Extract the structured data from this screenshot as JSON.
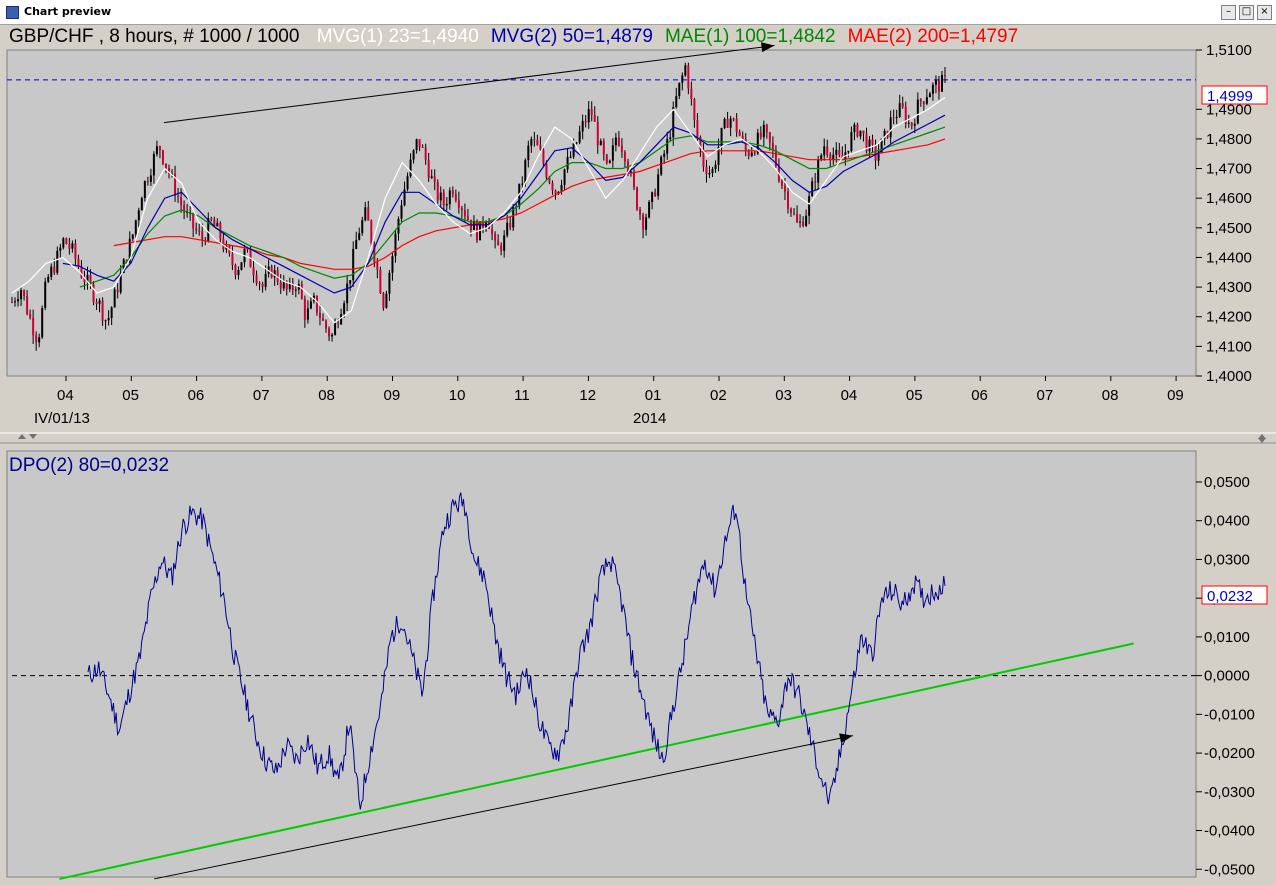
{
  "window": {
    "title": "Chart preview",
    "buttons": [
      "–",
      "□",
      "×"
    ]
  },
  "colors": {
    "panel_bg": "#c8c8c8",
    "mvg1": "#ffffff",
    "mvg2": "#0000aa",
    "mae1": "#008800",
    "mae2": "#ff0000",
    "dpo": "#00008b",
    "trend_green": "#00cc00"
  },
  "chart_data": [
    {
      "type": "candlestick",
      "title": "GBP/CHF , 8 hours, # 1000 / 1000",
      "indicators": [
        {
          "name": "MVG(1) 23",
          "value": "1,4940",
          "label": "MVG(1) 23=1,4940",
          "color": "#ffffff"
        },
        {
          "name": "MVG(2) 50",
          "value": "1,4879",
          "label": "MVG(2) 50=1,4879",
          "color": "#0000aa"
        },
        {
          "name": "MAE(1) 100",
          "value": "1,4842",
          "label": "MAE(1) 100=1,4842",
          "color": "#008800"
        },
        {
          "name": "MAE(2) 200",
          "value": "1,4797",
          "label": "MAE(2) 200=1,4797",
          "color": "#ff0000"
        }
      ],
      "ylim": [
        1.4,
        1.51
      ],
      "yticks": [
        "1,5100",
        "1,4900",
        "1,4800",
        "1,4700",
        "1,4600",
        "1,4500",
        "1,4400",
        "1,4300",
        "1,4200",
        "1,4100",
        "1,4000"
      ],
      "ytick_values": [
        1.51,
        1.49,
        1.48,
        1.47,
        1.46,
        1.45,
        1.44,
        1.43,
        1.42,
        1.41,
        1.4
      ],
      "xticks": [
        "04",
        "05",
        "06",
        "07",
        "08",
        "09",
        "10",
        "11",
        "12",
        "01",
        "02",
        "03",
        "04",
        "05",
        "06",
        "07",
        "08",
        "09"
      ],
      "x_sublabels": [
        "IV/01/13",
        "2014"
      ],
      "last_price": "1,4999",
      "last_value": 1.4999,
      "price_path": [
        1.425,
        1.43,
        1.42,
        1.412,
        1.432,
        1.438,
        1.446,
        1.442,
        1.435,
        1.43,
        1.425,
        1.418,
        1.428,
        1.438,
        1.448,
        1.462,
        1.47,
        1.478,
        1.47,
        1.462,
        1.455,
        1.45,
        1.446,
        1.452,
        1.448,
        1.44,
        1.436,
        1.442,
        1.436,
        1.43,
        1.436,
        1.432,
        1.428,
        1.432,
        1.42,
        1.425,
        1.418,
        1.413,
        1.423,
        1.432,
        1.448,
        1.455,
        1.44,
        1.425,
        1.44,
        1.458,
        1.47,
        1.48,
        1.472,
        1.462,
        1.458,
        1.464,
        1.458,
        1.452,
        1.448,
        1.455,
        1.442,
        1.446,
        1.455,
        1.465,
        1.48,
        1.476,
        1.468,
        1.462,
        1.47,
        1.476,
        1.484,
        1.49,
        1.478,
        1.468,
        1.482,
        1.475,
        1.462,
        1.452,
        1.458,
        1.47,
        1.48,
        1.495,
        1.505,
        1.485,
        1.472,
        1.468,
        1.48,
        1.488,
        1.483,
        1.475,
        1.478,
        1.482,
        1.476,
        1.466,
        1.458,
        1.45,
        1.456,
        1.468,
        1.478,
        1.475,
        1.472,
        1.48,
        1.484,
        1.478,
        1.474,
        1.48,
        1.488,
        1.49,
        1.484,
        1.492,
        1.496,
        1.498,
        1.499
      ],
      "mvg1_path": [
        1.428,
        1.432,
        1.438,
        1.44,
        1.435,
        1.428,
        1.43,
        1.44,
        1.46,
        1.47,
        1.465,
        1.452,
        1.446,
        1.442,
        1.44,
        1.436,
        1.432,
        1.43,
        1.425,
        1.418,
        1.422,
        1.44,
        1.46,
        1.472,
        1.466,
        1.458,
        1.452,
        1.448,
        1.45,
        1.455,
        1.462,
        1.474,
        1.484,
        1.48,
        1.47,
        1.46,
        1.466,
        1.475,
        1.484,
        1.49,
        1.482,
        1.474,
        1.478,
        1.48,
        1.476,
        1.47,
        1.462,
        1.458,
        1.466,
        1.474,
        1.476,
        1.478,
        1.484,
        1.487,
        1.49,
        1.494
      ],
      "mvg2_path": [
        null,
        null,
        null,
        1.438,
        1.437,
        1.434,
        1.432,
        1.438,
        1.45,
        1.46,
        1.462,
        1.456,
        1.45,
        1.446,
        1.443,
        1.44,
        1.437,
        1.434,
        1.431,
        1.428,
        1.43,
        1.438,
        1.452,
        1.462,
        1.462,
        1.458,
        1.454,
        1.451,
        1.451,
        1.454,
        1.46,
        1.468,
        1.476,
        1.477,
        1.472,
        1.466,
        1.467,
        1.472,
        1.478,
        1.484,
        1.482,
        1.478,
        1.478,
        1.479,
        1.477,
        1.472,
        1.466,
        1.462,
        1.464,
        1.469,
        1.472,
        1.475,
        1.479,
        1.482,
        1.485,
        1.488
      ],
      "mae1_path": [
        null,
        null,
        null,
        null,
        1.43,
        1.432,
        1.434,
        1.44,
        1.448,
        1.454,
        1.456,
        1.454,
        1.45,
        1.447,
        1.444,
        1.442,
        1.44,
        1.437,
        1.435,
        1.433,
        1.434,
        1.438,
        1.445,
        1.452,
        1.455,
        1.455,
        1.454,
        1.452,
        1.452,
        1.454,
        1.458,
        1.463,
        1.469,
        1.472,
        1.472,
        1.47,
        1.47,
        1.472,
        1.476,
        1.48,
        1.481,
        1.479,
        1.479,
        1.479,
        1.478,
        1.476,
        1.473,
        1.47,
        1.47,
        1.472,
        1.474,
        1.476,
        1.478,
        1.48,
        1.482,
        1.484
      ],
      "mae2_path": [
        null,
        null,
        null,
        null,
        null,
        null,
        1.444,
        1.445,
        1.446,
        1.447,
        1.447,
        1.446,
        1.445,
        1.444,
        1.443,
        1.441,
        1.44,
        1.438,
        1.437,
        1.436,
        1.436,
        1.437,
        1.44,
        1.444,
        1.447,
        1.449,
        1.45,
        1.451,
        1.452,
        1.453,
        1.455,
        1.458,
        1.461,
        1.464,
        1.466,
        1.467,
        1.468,
        1.469,
        1.471,
        1.473,
        1.475,
        1.476,
        1.476,
        1.476,
        1.476,
        1.475,
        1.474,
        1.473,
        1.473,
        1.473,
        1.474,
        1.475,
        1.476,
        1.477,
        1.478,
        1.48
      ]
    },
    {
      "type": "line",
      "title": "DPO(2) 80=0,0232",
      "series": [
        {
          "name": "DPO(2) 80",
          "color": "#00008b"
        }
      ],
      "ylim": [
        -0.052,
        0.058
      ],
      "yticks": [
        "0,0500",
        "0,0400",
        "0,0300",
        "0,0200",
        "0,0100",
        "0,0000",
        "-0,0100",
        "-0,0200",
        "-0,0300",
        "-0,0400",
        "-0,0500"
      ],
      "ytick_values": [
        0.05,
        0.04,
        0.03,
        0.02,
        0.01,
        0,
        -0.01,
        -0.02,
        -0.03,
        -0.04,
        -0.05
      ],
      "last_value_label": "0,0232",
      "last_value": 0.0232,
      "dpo_path": [
        0.0,
        0.002,
        -0.005,
        -0.014,
        -0.004,
        0.005,
        0.02,
        0.03,
        0.025,
        0.038,
        0.042,
        0.04,
        0.03,
        0.02,
        0.005,
        -0.005,
        -0.015,
        -0.022,
        -0.025,
        -0.018,
        -0.022,
        -0.016,
        -0.024,
        -0.02,
        -0.028,
        -0.012,
        -0.034,
        -0.02,
        -0.008,
        0.01,
        0.015,
        0.005,
        -0.005,
        0.02,
        0.038,
        0.044,
        0.045,
        0.03,
        0.025,
        0.01,
        0.0,
        -0.005,
        0.002,
        -0.01,
        -0.018,
        -0.02,
        -0.012,
        0.005,
        0.012,
        0.025,
        0.03,
        0.02,
        0.005,
        -0.005,
        -0.015,
        -0.022,
        -0.008,
        0.005,
        0.02,
        0.03,
        0.022,
        0.035,
        0.044,
        0.02,
        0.005,
        -0.01,
        -0.012,
        0.0,
        -0.005,
        -0.015,
        -0.025,
        -0.033,
        -0.02,
        -0.005,
        0.01,
        0.005,
        0.02,
        0.022,
        0.018,
        0.024,
        0.02,
        0.022,
        0.0232
      ]
    }
  ],
  "annotations": {
    "upper_arrow": {
      "from": [
        1.5,
        1.4855
      ],
      "to": [
        10.85,
        1.5115
      ]
    },
    "lower_arrow": {
      "from": [
        1.35,
        -0.0525
      ],
      "to": [
        12.05,
        -0.0155
      ]
    },
    "green_trend": {
      "from": [
        -0.1,
        -0.0525
      ],
      "to": [
        16.35,
        0.0083
      ]
    }
  }
}
